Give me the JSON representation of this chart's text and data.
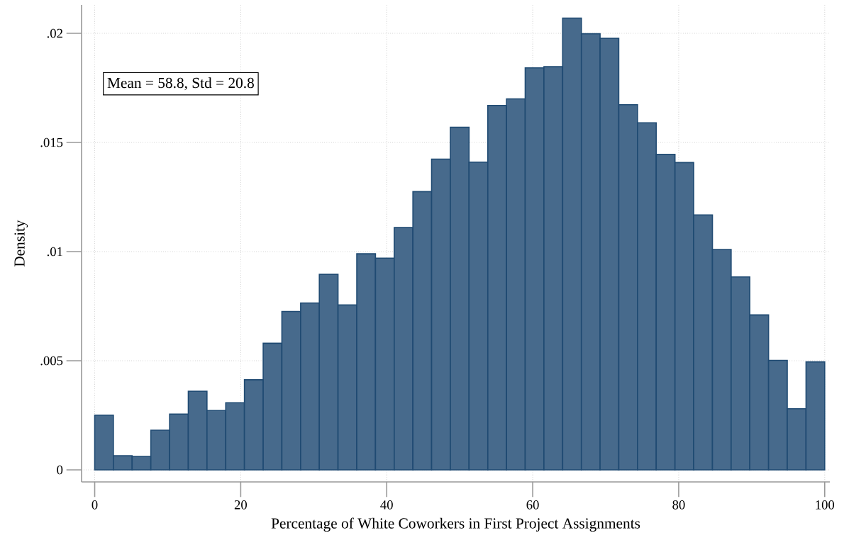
{
  "chart_data": {
    "type": "histogram",
    "xlabel": "Percentage of White Coworkers in First Project Assignments",
    "ylabel": "Density",
    "annotations": [
      "Mean = 58.8, Std = 20.8"
    ],
    "bins": [
      0,
      2.56,
      5.13,
      7.69,
      10.26,
      12.82,
      15.38,
      17.95,
      20.51,
      23.08,
      25.64,
      28.21,
      30.77,
      33.33,
      35.9,
      38.46,
      41.03,
      43.59,
      46.15,
      48.72,
      51.28,
      53.85,
      56.41,
      58.97,
      61.54,
      64.1,
      66.67,
      69.23,
      71.79,
      74.36,
      76.92,
      79.49,
      82.05,
      84.62,
      87.18,
      89.74,
      92.31,
      94.87,
      97.44,
      100
    ],
    "values": [
      0.00251,
      0.00065,
      0.00062,
      0.00182,
      0.00256,
      0.0036,
      0.00272,
      0.00308,
      0.00413,
      0.0058,
      0.00726,
      0.00765,
      0.00896,
      0.00756,
      0.0099,
      0.0097,
      0.0111,
      0.01275,
      0.01424,
      0.0157,
      0.0141,
      0.0167,
      0.017,
      0.01842,
      0.01847,
      0.0207,
      0.01998,
      0.01977,
      0.01673,
      0.0159,
      0.01446,
      0.01408,
      0.01168,
      0.0101,
      0.00884,
      0.0071,
      0.00502,
      0.0028,
      0.00495
    ],
    "color": "#476a8c",
    "xlim": [
      -1.8,
      100.7
    ],
    "ylim": [
      -0.00055,
      0.0213
    ],
    "xticks": [
      0,
      20,
      40,
      60,
      80,
      100
    ],
    "yticks": [
      0,
      {
        "value": 0.005,
        "label": ".005"
      },
      {
        "value": 0.01,
        "label": ".01"
      },
      {
        "value": 0.015,
        "label": ".015"
      },
      {
        "value": 0.02,
        "label": ".02"
      }
    ],
    "grid": true
  }
}
